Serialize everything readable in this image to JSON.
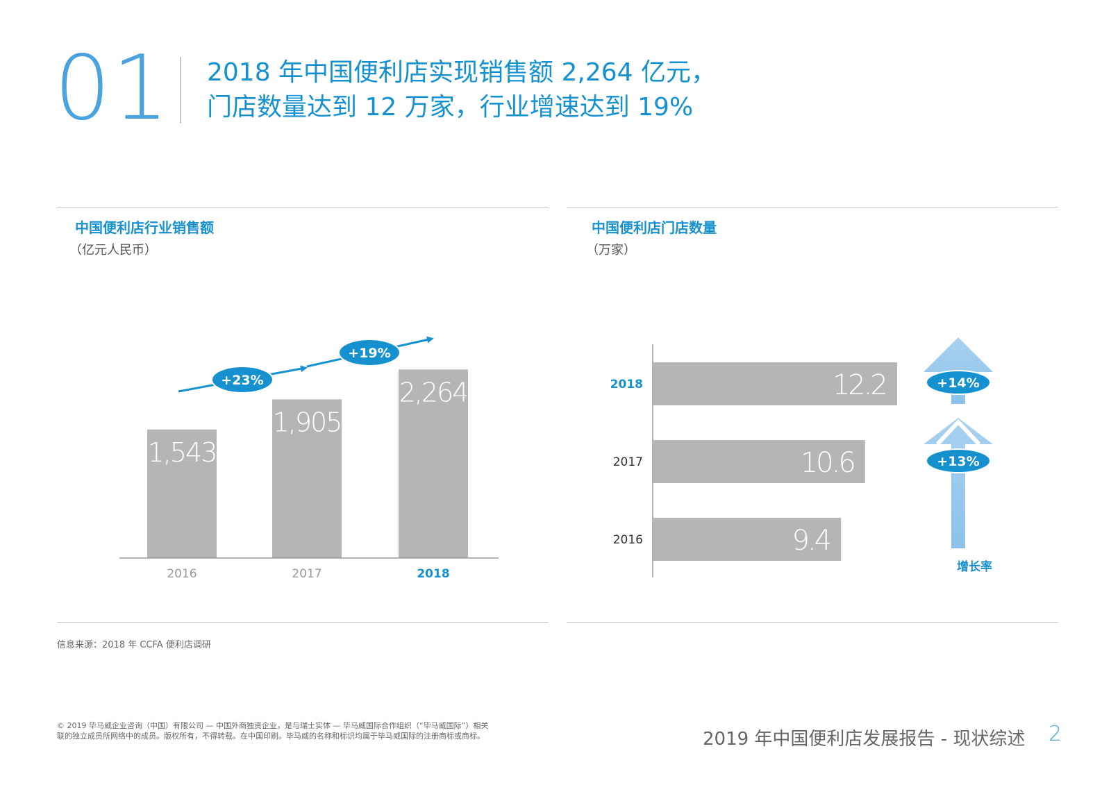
{
  "header": {
    "number": "01",
    "headline_line1": "2018 年中国便利店实现销售额 2,264 亿元，",
    "headline_line2": "门店数量达到 12 万家，行业增速达到 19%"
  },
  "colors": {
    "accent": "#1591d0",
    "light_blue": "#4aa3dc",
    "bar_gray": "#b5b5b5",
    "arrow_blue": "#a9d1ef"
  },
  "left_panel": {
    "title": "中国便利店行业销售额",
    "subtitle": "（亿元人民币）"
  },
  "right_panel": {
    "title": "中国便利店门店数量",
    "subtitle": "（万家）",
    "growth_label": "增长率"
  },
  "chart_data": [
    {
      "type": "bar",
      "orientation": "vertical",
      "title": "中国便利店行业销售额",
      "unit": "（亿元人民币）",
      "categories": [
        "2016",
        "2017",
        "2018"
      ],
      "value_labels": [
        "1,543",
        "1,905",
        "2,264"
      ],
      "values": [
        1543,
        1905,
        2264
      ],
      "growth_labels": [
        "+23%",
        "+19%"
      ],
      "highlight_category": "2018",
      "ylim": [
        0,
        2500
      ]
    },
    {
      "type": "bar",
      "orientation": "horizontal",
      "title": "中国便利店门店数量",
      "unit": "（万家）",
      "categories": [
        "2018",
        "2017",
        "2016"
      ],
      "value_labels": [
        "12.2",
        "10.6",
        "9.4"
      ],
      "values": [
        12.2,
        10.6,
        9.4
      ],
      "growth_labels": [
        "+14%",
        "+13%"
      ],
      "highlight_category": "2018",
      "xlim": [
        0,
        13
      ]
    }
  ],
  "source": "信息来源：2018 年 CCFA 便利店调研",
  "footer": {
    "legal_line1": "© 2019 毕马威企业咨询（中国）有限公司 — 中国外商独资企业，是与瑞士实体 — 毕马威国际合作组织（“毕马威国际”）相关",
    "legal_line2": "联的独立成员所网络中的成员。版权所有，不得转载。在中国印刷。毕马威的名称和标识均属于毕马威国际的注册商标或商标。",
    "report_title": "2019 年中国便利店发展报告 - 现状综述",
    "page_number": "2"
  }
}
